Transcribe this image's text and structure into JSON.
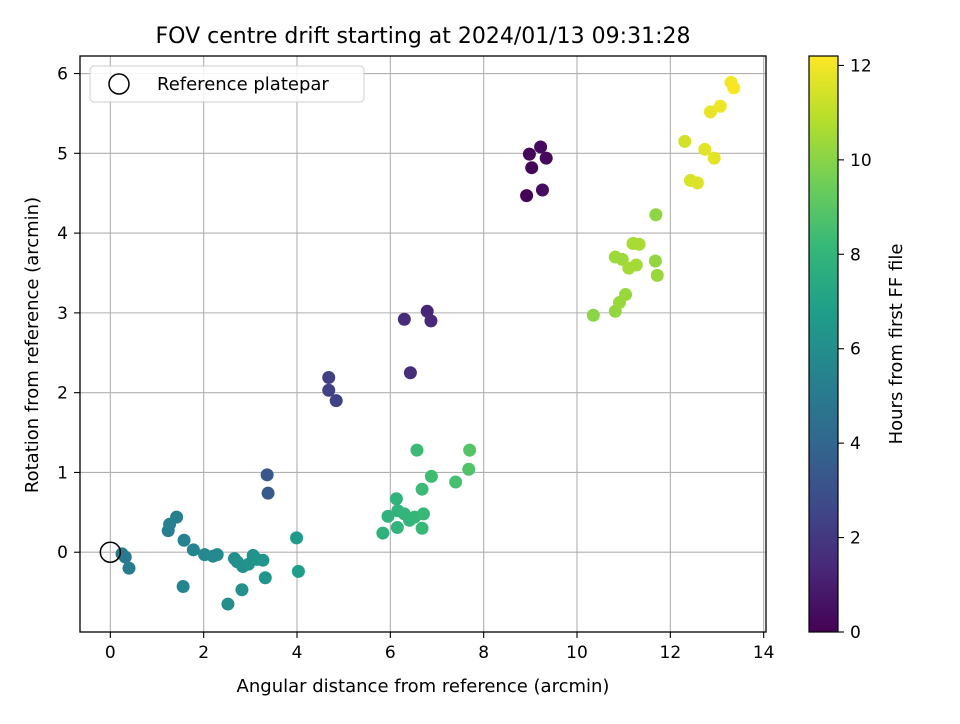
{
  "chart_data": {
    "type": "scatter",
    "title": "FOV centre drift starting at 2024/01/13 09:31:28",
    "xlabel": "Angular distance from reference (arcmin)",
    "ylabel": "Rotation from reference (arcmin)",
    "xlim": [
      -0.65,
      14.05
    ],
    "ylim": [
      -1.0,
      6.22
    ],
    "xticks": [
      0,
      2,
      4,
      6,
      8,
      10,
      12,
      14
    ],
    "yticks": [
      0,
      1,
      2,
      3,
      4,
      5,
      6
    ],
    "grid": true,
    "legend": {
      "placement": "top-left",
      "entries": [
        "Reference platepar"
      ]
    },
    "reference_marker": {
      "x": 0,
      "y": 0
    },
    "colorbar": {
      "label": "Hours from first FF file",
      "range": [
        0,
        12.2
      ],
      "ticks": [
        0,
        2,
        4,
        6,
        8,
        10,
        12
      ],
      "colormap": "viridis"
    },
    "points": [
      {
        "x": 8.92,
        "y": 4.47,
        "h": 0.1
      },
      {
        "x": 9.03,
        "y": 4.82,
        "h": 0.2
      },
      {
        "x": 8.98,
        "y": 4.99,
        "h": 0.2
      },
      {
        "x": 9.22,
        "y": 5.08,
        "h": 0.3
      },
      {
        "x": 9.34,
        "y": 4.94,
        "h": 0.3
      },
      {
        "x": 9.26,
        "y": 4.54,
        "h": 0.4
      },
      {
        "x": 6.79,
        "y": 3.02,
        "h": 1.3
      },
      {
        "x": 6.3,
        "y": 2.92,
        "h": 1.5
      },
      {
        "x": 6.87,
        "y": 2.9,
        "h": 1.4
      },
      {
        "x": 6.43,
        "y": 2.25,
        "h": 1.6
      },
      {
        "x": 4.68,
        "y": 2.19,
        "h": 2.3
      },
      {
        "x": 4.68,
        "y": 2.03,
        "h": 2.4
      },
      {
        "x": 4.84,
        "y": 1.9,
        "h": 2.4
      },
      {
        "x": 3.36,
        "y": 0.97,
        "h": 3.3
      },
      {
        "x": 3.38,
        "y": 0.74,
        "h": 3.4
      },
      {
        "x": 0.25,
        "y": -0.02,
        "h": 5.0
      },
      {
        "x": 0.32,
        "y": -0.06,
        "h": 5.0
      },
      {
        "x": 0.4,
        "y": -0.2,
        "h": 5.1
      },
      {
        "x": 1.24,
        "y": 0.27,
        "h": 5.2
      },
      {
        "x": 1.27,
        "y": 0.35,
        "h": 5.3
      },
      {
        "x": 1.42,
        "y": 0.44,
        "h": 5.3
      },
      {
        "x": 1.58,
        "y": 0.15,
        "h": 5.4
      },
      {
        "x": 1.78,
        "y": 0.03,
        "h": 5.5
      },
      {
        "x": 2.02,
        "y": -0.03,
        "h": 5.7
      },
      {
        "x": 2.2,
        "y": -0.05,
        "h": 5.8
      },
      {
        "x": 2.29,
        "y": -0.03,
        "h": 5.8
      },
      {
        "x": 1.56,
        "y": -0.43,
        "h": 5.5
      },
      {
        "x": 2.66,
        "y": -0.08,
        "h": 6.0
      },
      {
        "x": 2.72,
        "y": -0.12,
        "h": 6.1
      },
      {
        "x": 2.84,
        "y": -0.18,
        "h": 6.1
      },
      {
        "x": 2.96,
        "y": -0.15,
        "h": 6.2
      },
      {
        "x": 3.06,
        "y": -0.04,
        "h": 6.2
      },
      {
        "x": 3.14,
        "y": -0.09,
        "h": 6.3
      },
      {
        "x": 3.27,
        "y": -0.1,
        "h": 6.3
      },
      {
        "x": 2.52,
        "y": -0.65,
        "h": 6.0
      },
      {
        "x": 2.82,
        "y": -0.47,
        "h": 6.1
      },
      {
        "x": 3.32,
        "y": -0.32,
        "h": 6.3
      },
      {
        "x": 3.99,
        "y": 0.18,
        "h": 6.7
      },
      {
        "x": 4.03,
        "y": -0.24,
        "h": 6.8
      },
      {
        "x": 5.84,
        "y": 0.24,
        "h": 7.8
      },
      {
        "x": 5.95,
        "y": 0.45,
        "h": 7.8
      },
      {
        "x": 6.13,
        "y": 0.67,
        "h": 7.9
      },
      {
        "x": 6.16,
        "y": 0.52,
        "h": 7.9
      },
      {
        "x": 6.15,
        "y": 0.31,
        "h": 7.9
      },
      {
        "x": 6.3,
        "y": 0.48,
        "h": 8.0
      },
      {
        "x": 6.41,
        "y": 0.4,
        "h": 8.0
      },
      {
        "x": 6.52,
        "y": 0.44,
        "h": 8.1
      },
      {
        "x": 6.71,
        "y": 0.48,
        "h": 8.2
      },
      {
        "x": 6.68,
        "y": 0.3,
        "h": 8.2
      },
      {
        "x": 6.57,
        "y": 1.28,
        "h": 8.3
      },
      {
        "x": 6.68,
        "y": 0.79,
        "h": 8.3
      },
      {
        "x": 6.88,
        "y": 0.95,
        "h": 8.4
      },
      {
        "x": 7.4,
        "y": 0.88,
        "h": 8.6
      },
      {
        "x": 7.68,
        "y": 1.04,
        "h": 8.8
      },
      {
        "x": 7.7,
        "y": 1.28,
        "h": 8.9
      },
      {
        "x": 10.35,
        "y": 2.97,
        "h": 10.0
      },
      {
        "x": 10.82,
        "y": 3.02,
        "h": 10.2
      },
      {
        "x": 10.91,
        "y": 3.13,
        "h": 10.3
      },
      {
        "x": 11.04,
        "y": 3.23,
        "h": 10.3
      },
      {
        "x": 10.82,
        "y": 3.7,
        "h": 10.4
      },
      {
        "x": 10.97,
        "y": 3.67,
        "h": 10.4
      },
      {
        "x": 11.11,
        "y": 3.56,
        "h": 10.5
      },
      {
        "x": 11.27,
        "y": 3.6,
        "h": 10.5
      },
      {
        "x": 11.2,
        "y": 3.87,
        "h": 10.6
      },
      {
        "x": 11.33,
        "y": 3.86,
        "h": 10.6
      },
      {
        "x": 11.68,
        "y": 3.65,
        "h": 10.2
      },
      {
        "x": 11.72,
        "y": 3.47,
        "h": 10.3
      },
      {
        "x": 11.69,
        "y": 4.23,
        "h": 10.1
      },
      {
        "x": 12.31,
        "y": 5.15,
        "h": 11.4
      },
      {
        "x": 12.43,
        "y": 4.66,
        "h": 11.5
      },
      {
        "x": 12.58,
        "y": 4.63,
        "h": 11.6
      },
      {
        "x": 12.74,
        "y": 5.05,
        "h": 11.7
      },
      {
        "x": 12.94,
        "y": 4.94,
        "h": 11.7
      },
      {
        "x": 12.86,
        "y": 5.52,
        "h": 11.8
      },
      {
        "x": 13.07,
        "y": 5.59,
        "h": 11.9
      },
      {
        "x": 13.3,
        "y": 5.89,
        "h": 12.0
      },
      {
        "x": 13.36,
        "y": 5.82,
        "h": 12.1
      }
    ]
  }
}
